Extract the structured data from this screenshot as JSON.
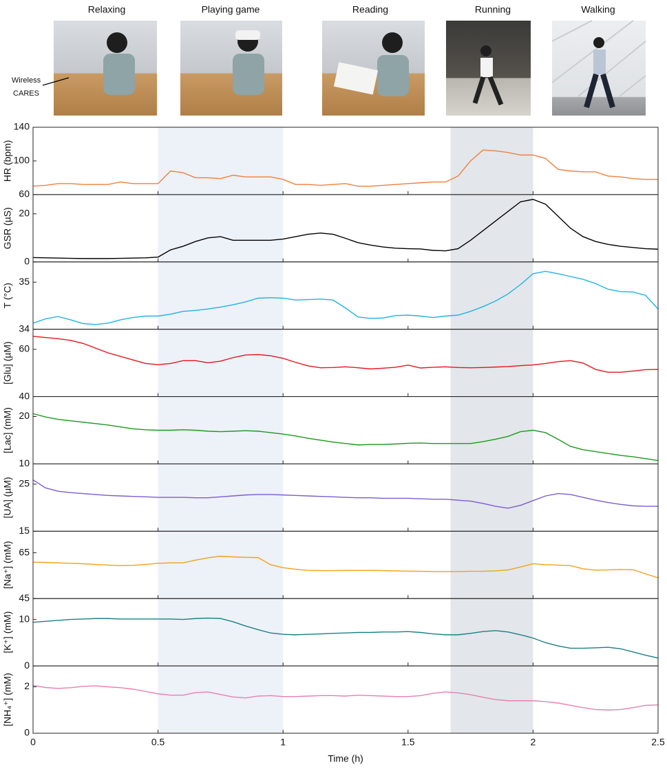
{
  "photos": [
    {
      "label": "Relaxing"
    },
    {
      "label": "Playing game"
    },
    {
      "label": "Reading"
    },
    {
      "label": "Running"
    },
    {
      "label": "Walking"
    }
  ],
  "annotation": [
    "Wireless",
    "CARES"
  ],
  "chart_data": {
    "type": "line",
    "xlabel": "Time (h)",
    "xlim": [
      0,
      2.5
    ],
    "xticks": [
      0,
      0.5,
      1,
      1.5,
      2,
      2.5
    ],
    "shaded": [
      {
        "range": [
          0.5,
          1
        ],
        "color": "#edf1f8"
      },
      {
        "range": [
          1.67,
          2
        ],
        "color": "#e3e6ea"
      }
    ],
    "x": [
      0,
      0.05,
      0.1,
      0.15,
      0.2,
      0.25,
      0.3,
      0.35,
      0.4,
      0.45,
      0.5,
      0.55,
      0.6,
      0.65,
      0.7,
      0.75,
      0.8,
      0.85,
      0.9,
      0.95,
      1,
      1.05,
      1.1,
      1.15,
      1.2,
      1.25,
      1.3,
      1.35,
      1.4,
      1.45,
      1.5,
      1.55,
      1.6,
      1.65,
      1.7,
      1.75,
      1.8,
      1.85,
      1.9,
      1.95,
      2,
      2.05,
      2.1,
      2.15,
      2.2,
      2.25,
      2.3,
      2.35,
      2.4,
      2.45,
      2.5
    ],
    "panels": [
      {
        "ylabel": "HR (bpm)",
        "color": "#f07f3c",
        "ylim": [
          60,
          140
        ],
        "yticks": [
          60,
          100,
          140
        ],
        "values": [
          70,
          71,
          73,
          73,
          72,
          72,
          72,
          75,
          73,
          73,
          73,
          88,
          86,
          80,
          80,
          79,
          83,
          81,
          81,
          81,
          78,
          72,
          72,
          71,
          72,
          73,
          70,
          70,
          71,
          72,
          73,
          74,
          75,
          75,
          82,
          100,
          113,
          112,
          110,
          107,
          107,
          103,
          90,
          88,
          87,
          87,
          82,
          81,
          79,
          78,
          78
        ]
      },
      {
        "ylabel": "GSR (µS)",
        "color": "#000000",
        "ylim": [
          0,
          28
        ],
        "yticks": [
          0,
          20
        ],
        "values": [
          1.8,
          1.7,
          1.6,
          1.5,
          1.4,
          1.4,
          1.4,
          1.5,
          1.6,
          1.7,
          2.0,
          5,
          6.5,
          8.5,
          10,
          10.5,
          9,
          9,
          9,
          9,
          9.5,
          10.5,
          11.5,
          12,
          11.5,
          9.8,
          8,
          7,
          6.2,
          5.7,
          5.5,
          5.4,
          4.8,
          4.6,
          5.5,
          9,
          13,
          17,
          21,
          25,
          26,
          24,
          19,
          14,
          10.5,
          8.5,
          7.3,
          6.5,
          6,
          5.5,
          5.3
        ]
      },
      {
        "ylabel": "T (°C)",
        "color": "#1eb4e6",
        "ylim": [
          34,
          35.43
        ],
        "yticks": [
          34,
          35
        ],
        "values": [
          34.13,
          34.22,
          34.27,
          34.2,
          34.12,
          34.1,
          34.13,
          34.2,
          34.25,
          34.28,
          34.28,
          34.32,
          34.38,
          34.4,
          34.43,
          34.47,
          34.52,
          34.58,
          34.66,
          34.67,
          34.66,
          34.62,
          34.63,
          34.64,
          34.62,
          34.45,
          34.26,
          34.23,
          34.24,
          34.29,
          34.3,
          34.28,
          34.25,
          34.28,
          34.3,
          34.38,
          34.48,
          34.6,
          34.75,
          34.95,
          35.18,
          35.23,
          35.18,
          35.12,
          35.06,
          34.97,
          34.85,
          34.8,
          34.79,
          34.72,
          34.43
        ]
      },
      {
        "ylabel": "[Glu] (µM)",
        "color": "#e8141c",
        "ylim": [
          40,
          68.5
        ],
        "yticks": [
          40,
          60
        ],
        "values": [
          65.5,
          65,
          64.5,
          63.8,
          62.5,
          60.5,
          58.5,
          57,
          55.5,
          54,
          53.5,
          54,
          55.2,
          55.2,
          54.3,
          55,
          56.5,
          57.6,
          57.8,
          57.3,
          56.2,
          54.5,
          53,
          52.2,
          52.3,
          52.6,
          52.2,
          51.7,
          52,
          52.4,
          53.3,
          52.1,
          52.4,
          52.6,
          52.3,
          52.2,
          52.3,
          52.5,
          52.7,
          53.1,
          53.4,
          54,
          54.8,
          55.2,
          54.2,
          51.5,
          50.3,
          50.3,
          50.8,
          51.4,
          51.5
        ]
      },
      {
        "ylabel": "[Lac] (mM)",
        "color": "#1a9a1a",
        "ylim": [
          10,
          24.2
        ],
        "yticks": [
          10,
          20
        ],
        "values": [
          20.6,
          19.9,
          19.4,
          19.1,
          18.8,
          18.5,
          18.2,
          17.8,
          17.4,
          17.2,
          17.1,
          17.1,
          17.2,
          17.1,
          16.9,
          16.8,
          16.9,
          17.0,
          16.9,
          16.6,
          16.3,
          15.9,
          15.4,
          15.0,
          14.6,
          14.3,
          14.0,
          14.1,
          14.1,
          14.2,
          14.35,
          14.4,
          14.3,
          14.3,
          14.3,
          14.3,
          14.7,
          15.2,
          15.8,
          16.8,
          17.1,
          16.6,
          15.2,
          13.7,
          13.0,
          12.6,
          12.2,
          11.8,
          11.5,
          11.1,
          10.7
        ]
      },
      {
        "ylabel": "[UA] (µM)",
        "color": "#7b5cd0",
        "ylim": [
          15,
          29.3
        ],
        "yticks": [
          15,
          25
        ],
        "values": [
          25.9,
          24.2,
          23.5,
          23.2,
          23.0,
          22.8,
          22.6,
          22.5,
          22.4,
          22.3,
          22.2,
          22.2,
          22.2,
          22.1,
          22.1,
          22.3,
          22.5,
          22.7,
          22.8,
          22.8,
          22.7,
          22.6,
          22.5,
          22.4,
          22.3,
          22.2,
          22.1,
          22.1,
          22.0,
          22.0,
          22.0,
          21.9,
          21.8,
          21.8,
          21.6,
          21.4,
          20.9,
          20.3,
          19.9,
          20.5,
          21.5,
          22.5,
          23.0,
          22.8,
          22.2,
          21.6,
          21.1,
          20.7,
          20.4,
          20.3,
          20.3
        ]
      },
      {
        "ylabel": "[Na⁺] (mM)",
        "color": "#f4a016",
        "ylim": [
          45,
          74.4
        ],
        "yticks": [
          45,
          65
        ],
        "values": [
          60.9,
          60.8,
          60.6,
          60.4,
          60.2,
          59.9,
          59.6,
          59.4,
          59.5,
          59.9,
          60.4,
          60.6,
          60.6,
          61.8,
          62.8,
          63.5,
          63.2,
          63.0,
          62.9,
          59.8,
          58.5,
          57.8,
          57.3,
          57.2,
          57.2,
          57.3,
          57.3,
          57.3,
          57.2,
          57.1,
          57.0,
          56.9,
          56.8,
          56.8,
          56.8,
          56.9,
          56.9,
          57.1,
          57.5,
          58.8,
          60.2,
          59.8,
          59.6,
          59.4,
          58.0,
          57.4,
          57.5,
          57.7,
          57.6,
          55.8,
          54.1
        ]
      },
      {
        "ylabel": "[K⁺] (mM)",
        "color": "#1a7f86",
        "ylim": [
          0,
          14.5
        ],
        "yticks": [
          0,
          10
        ],
        "values": [
          9.4,
          9.6,
          9.8,
          10,
          10.1,
          10.2,
          10.2,
          10.1,
          10.1,
          10.1,
          10.1,
          10.1,
          10.0,
          10.2,
          10.3,
          10.2,
          9.5,
          8.6,
          7.8,
          7.1,
          6.8,
          6.7,
          6.8,
          6.9,
          7.0,
          7.1,
          7.2,
          7.2,
          7.3,
          7.3,
          7.4,
          7.2,
          6.9,
          6.7,
          6.7,
          7.0,
          7.4,
          7.6,
          7.3,
          6.7,
          6.0,
          5.0,
          4.3,
          3.8,
          3.8,
          3.9,
          4.0,
          3.7,
          3.0,
          2.3,
          1.7
        ]
      },
      {
        "ylabel": "[NH₄⁺] (mM)",
        "color": "#e87fb0",
        "ylim": [
          0,
          2.9
        ],
        "yticks": [
          0,
          2
        ],
        "values": [
          2.06,
          1.97,
          1.93,
          1.96,
          2.02,
          2.04,
          2.0,
          1.96,
          1.9,
          1.8,
          1.7,
          1.64,
          1.64,
          1.75,
          1.78,
          1.67,
          1.56,
          1.52,
          1.6,
          1.62,
          1.58,
          1.58,
          1.6,
          1.62,
          1.62,
          1.6,
          1.64,
          1.62,
          1.6,
          1.58,
          1.58,
          1.62,
          1.72,
          1.78,
          1.74,
          1.66,
          1.55,
          1.45,
          1.4,
          1.4,
          1.4,
          1.36,
          1.3,
          1.2,
          1.1,
          1.02,
          1.0,
          1.02,
          1.1,
          1.2,
          1.22
        ]
      }
    ]
  }
}
